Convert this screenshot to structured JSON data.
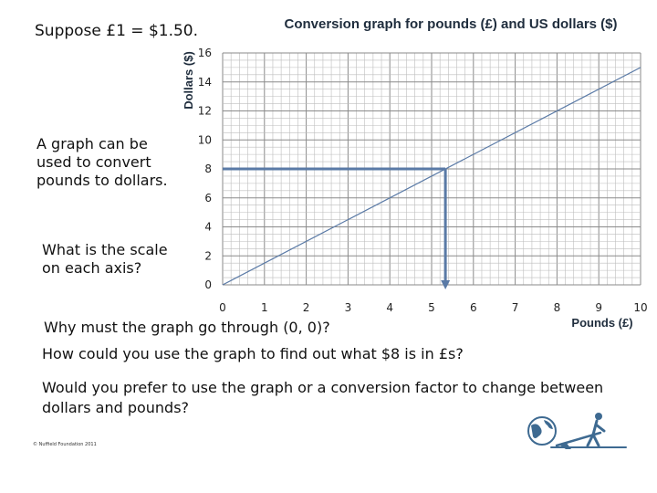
{
  "slide": {
    "suppose": "Suppose £1 = $1.50.",
    "graph_can": "A graph can be used to convert pounds to dollars.",
    "scale_question": "What is the scale on each axis?",
    "question_origin": "Why must the graph go through (0, 0)?",
    "question_eight": "How could you use the graph to find out what $8 is in £s?",
    "question_prefer": "Would you prefer to use the graph or a conversion factor to change between dollars and pounds?",
    "copyright": "© Nuffield Foundation 2011"
  },
  "chart_data": {
    "type": "line",
    "title": "Conversion graph for pounds (£) and US dollars ($)",
    "xlabel": "Pounds (£)",
    "ylabel": "Dollars ($)",
    "xlim": [
      0,
      10
    ],
    "ylim": [
      0,
      16
    ],
    "x_ticks": [
      "0",
      "1",
      "2",
      "3",
      "4",
      "5",
      "6",
      "7",
      "8",
      "9",
      "10"
    ],
    "y_ticks": [
      "0",
      "2",
      "4",
      "6",
      "8",
      "10",
      "12",
      "14",
      "16"
    ],
    "grid": true,
    "series": [
      {
        "x": [
          0,
          10
        ],
        "y": [
          0,
          15
        ]
      }
    ],
    "reading_arrows": [
      {
        "from": [
          0,
          8
        ],
        "to": [
          5.33,
          8
        ]
      },
      {
        "from": [
          5.33,
          8
        ],
        "to": [
          5.33,
          0
        ]
      }
    ],
    "colors": {
      "line": "#5a7aa6",
      "arrow": "#5a7aa6",
      "grid": "#bdbdbd",
      "title": "#1f2d3d"
    }
  },
  "logo": {
    "icons": [
      "globe-icon",
      "lever-person-icon"
    ],
    "color": "#3e6a91"
  }
}
